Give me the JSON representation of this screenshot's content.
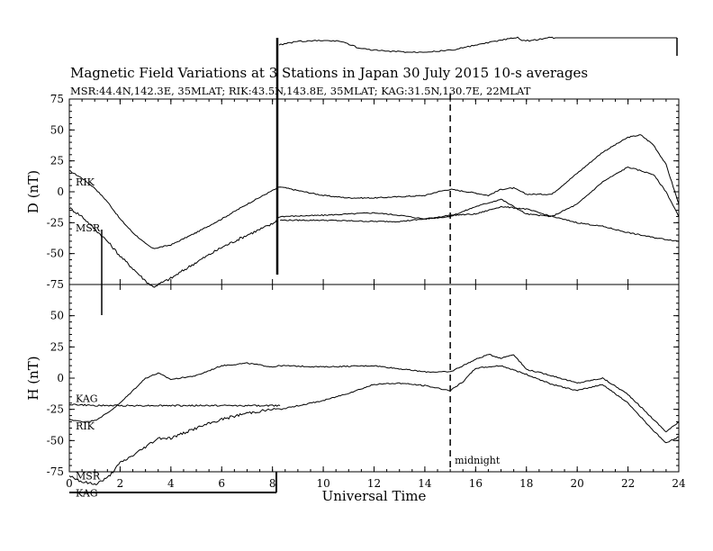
{
  "chart_data": {
    "type": "line",
    "title": "Magnetic Field Variations at 3 Stations in Japan        30 July       2015      10-s averages",
    "subtitle": "MSR:44.4N,142.3E, 35MLAT;  RIK:43.5N,143.8E, 35MLAT;  KAG:31.5N,130.7E, 22MLAT",
    "xlabel": "Universal Time",
    "xlim": [
      0,
      24
    ],
    "xticks": [
      "0",
      "2",
      "4",
      "6",
      "8",
      "10",
      "12",
      "14",
      "16",
      "18",
      "20",
      "22",
      "24"
    ],
    "annotation": "midnight",
    "annotation_x": 15,
    "panels": [
      {
        "ylabel": "D (nT)",
        "ylim": [
          -75,
          75
        ],
        "yticks": [
          "75",
          "50",
          "25",
          "0",
          "-25",
          "-50",
          "-75"
        ],
        "series": [
          {
            "name": "RIK",
            "x": [
              0,
              0.5,
              1,
              1.5,
              2,
              2.5,
              3,
              3.3,
              4,
              5,
              6,
              7,
              8,
              8.3,
              9,
              10,
              11,
              12,
              13,
              14,
              14.5,
              15,
              16,
              16.5,
              17,
              17.5,
              18,
              19,
              20,
              21,
              22,
              22.5,
              23,
              23.5,
              24
            ],
            "values": [
              17,
              11,
              3,
              -8,
              -22,
              -33,
              -42,
              -46,
              -43,
              -33,
              -22,
              -10,
              1,
              4,
              1,
              -3,
              -5,
              -5,
              -4,
              -3,
              0,
              2,
              -1,
              -3,
              2,
              3,
              -2,
              -2,
              15,
              32,
              44,
              46,
              38,
              22,
              -10
            ]
          },
          {
            "name": "MSR",
            "x": [
              0,
              0.5,
              1,
              1.5,
              2,
              2.5,
              3,
              3.3,
              4,
              5,
              6,
              7,
              8,
              8.3,
              10,
              12,
              13,
              14,
              15,
              16,
              16.5,
              17,
              17.5,
              18,
              19,
              20,
              21,
              22,
              23,
              23.5,
              24
            ],
            "values": [
              -13,
              -20,
              -30,
              -40,
              -52,
              -62,
              -72,
              -77,
              -70,
              -57,
              -45,
              -35,
              -26,
              -20,
              -19,
              -17,
              -19,
              -22,
              -20,
              -12,
              -9,
              -6,
              -12,
              -18,
              -20,
              -10,
              8,
              20,
              14,
              0,
              -20
            ]
          },
          {
            "name": "KAG",
            "x": [
              8.3,
              10,
              12,
              13,
              14,
              15,
              16,
              17,
              18,
              19,
              20,
              21,
              22,
              23,
              24
            ],
            "values": [
              -23,
              -23,
              -24,
              -24,
              -22,
              -19,
              -18,
              -12,
              -14,
              -20,
              -25,
              -28,
              -33,
              -37,
              -40
            ]
          }
        ]
      },
      {
        "ylabel": "H (nT)",
        "ylim": [
          -75,
          75
        ],
        "yticks": [
          "75",
          "50",
          "25",
          "0",
          "-25",
          "-50",
          "-75"
        ],
        "series": [
          {
            "name": "RIK",
            "x": [
              0,
              0.5,
              1,
              1.5,
              2,
              2.5,
              3,
              3.5,
              4,
              5,
              6,
              7,
              8,
              8.3,
              10,
              12,
              14,
              15,
              16,
              16.5,
              17,
              17.5,
              18,
              19,
              20,
              21,
              22,
              23,
              23.5,
              24
            ],
            "values": [
              -33,
              -35,
              -34,
              -28,
              -20,
              -10,
              0,
              4,
              -1,
              2,
              10,
              12,
              9,
              10,
              9,
              10,
              5,
              5,
              15,
              19,
              16,
              19,
              7,
              2,
              -4,
              0,
              -13,
              -33,
              -43,
              -35
            ]
          },
          {
            "name": "KAG",
            "x": [
              0,
              1,
              2,
              3,
              4,
              5,
              6,
              7,
              8,
              8.3
            ],
            "values": [
              -21,
              -22,
              -22,
              -22,
              -22,
              -22,
              -22,
              -22,
              -22,
              -22
            ]
          },
          {
            "name": "MSR",
            "x": [
              0,
              0.5,
              1,
              1.5,
              2,
              2.5,
              3,
              3.5,
              4,
              5,
              6,
              7,
              8,
              8.3,
              10,
              11,
              12,
              13,
              14,
              15,
              15.5,
              16,
              17,
              18,
              19,
              20,
              21,
              22,
              23,
              23.5,
              24
            ],
            "values": [
              -78,
              -83,
              -85,
              -80,
              -68,
              -62,
              -55,
              -48,
              -48,
              -40,
              -33,
              -28,
              -25,
              -25,
              -18,
              -12,
              -5,
              -4,
              -6,
              -10,
              -3,
              8,
              10,
              3,
              -5,
              -10,
              -5,
              -20,
              -42,
              -52,
              -47
            ]
          }
        ]
      }
    ],
    "labels": {
      "RIK": "RIK",
      "MSR": "MSR",
      "KAG": "KAG"
    }
  }
}
